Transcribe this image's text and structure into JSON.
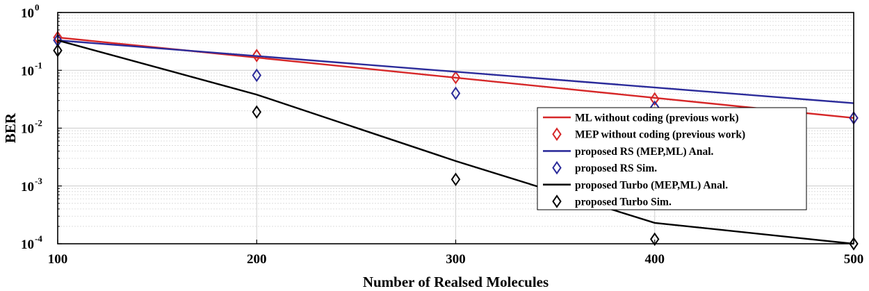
{
  "chart_data": {
    "type": "line",
    "xlabel": "Number of Realsed Molecules",
    "ylabel": "BER",
    "xlim": [
      100,
      500
    ],
    "ylim": [
      0.0001,
      1
    ],
    "yscale": "log",
    "grid": true,
    "x_ticks": [
      100,
      200,
      300,
      400,
      500
    ],
    "x_tick_labels": [
      "100",
      "200",
      "300",
      "400",
      "500"
    ],
    "y_ticks": [
      {
        "value": 1,
        "base": "10",
        "exp": "0"
      },
      {
        "value": 0.1,
        "base": "10",
        "exp": "-1"
      },
      {
        "value": 0.01,
        "base": "10",
        "exp": "-2"
      },
      {
        "value": 0.001,
        "base": "10",
        "exp": "-3"
      },
      {
        "value": 0.0001,
        "base": "10",
        "exp": "-4"
      }
    ],
    "legend_position": "right",
    "series": [
      {
        "name": "ML without coding (previous work)",
        "style": "line",
        "color": "#d62728",
        "x": [
          100,
          500
        ],
        "y": [
          0.37,
          0.015
        ]
      },
      {
        "name": "MEP without coding (previous work)",
        "style": "marker",
        "marker": "diamond",
        "color": "#d62728",
        "x": [
          100,
          200,
          300,
          400,
          500
        ],
        "y": [
          0.37,
          0.18,
          0.075,
          0.032,
          0.015
        ]
      },
      {
        "name": "proposed RS (MEP,ML) Anal.",
        "style": "line",
        "color": "#2b2b9a",
        "x": [
          100,
          500
        ],
        "y": [
          0.33,
          0.027
        ]
      },
      {
        "name": "proposed RS Sim.",
        "style": "marker",
        "marker": "diamond",
        "color": "#2b2b9a",
        "x": [
          100,
          200,
          300,
          400,
          500
        ],
        "y": [
          0.33,
          0.082,
          0.04,
          0.023,
          0.015
        ]
      },
      {
        "name": "proposed Turbo (MEP,ML) Anal.",
        "style": "line",
        "color": "#000000",
        "x": [
          100,
          200,
          300,
          400,
          500
        ],
        "y": [
          0.33,
          0.038,
          0.0027,
          0.00023,
          0.0001
        ]
      },
      {
        "name": "proposed Turbo Sim.",
        "style": "marker",
        "marker": "diamond",
        "color": "#000000",
        "x": [
          100,
          200,
          300,
          400,
          500
        ],
        "y": [
          0.22,
          0.019,
          0.0013,
          0.00012,
          0.0001
        ]
      }
    ]
  }
}
